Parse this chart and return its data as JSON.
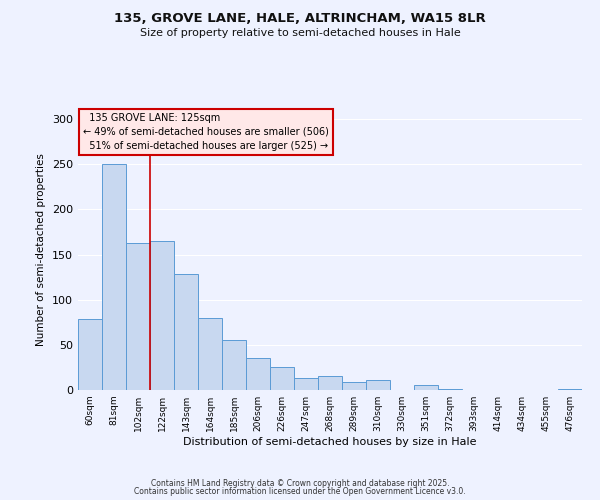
{
  "title1": "135, GROVE LANE, HALE, ALTRINCHAM, WA15 8LR",
  "title2": "Size of property relative to semi-detached houses in Hale",
  "xlabel": "Distribution of semi-detached houses by size in Hale",
  "ylabel": "Number of semi-detached properties",
  "categories": [
    "60sqm",
    "81sqm",
    "102sqm",
    "122sqm",
    "143sqm",
    "164sqm",
    "185sqm",
    "206sqm",
    "226sqm",
    "247sqm",
    "268sqm",
    "289sqm",
    "310sqm",
    "330sqm",
    "351sqm",
    "372sqm",
    "393sqm",
    "414sqm",
    "434sqm",
    "455sqm",
    "476sqm"
  ],
  "values": [
    79,
    250,
    163,
    165,
    128,
    80,
    55,
    35,
    25,
    13,
    16,
    9,
    11,
    0,
    5,
    1,
    0,
    0,
    0,
    0,
    1
  ],
  "bar_color": "#c8d8f0",
  "bar_edge_color": "#5b9bd5",
  "background_color": "#eef2ff",
  "grid_color": "#ffffff",
  "property_line_x": 3.5,
  "property_label": "135 GROVE LANE: 125sqm",
  "smaller_pct": 49,
  "smaller_count": 506,
  "larger_pct": 51,
  "larger_count": 525,
  "annotation_box_facecolor": "#ffe8e8",
  "annotation_box_edgecolor": "#cc0000",
  "ylim": [
    0,
    310
  ],
  "yticks": [
    0,
    50,
    100,
    150,
    200,
    250,
    300
  ],
  "footnote1": "Contains HM Land Registry data © Crown copyright and database right 2025.",
  "footnote2": "Contains public sector information licensed under the Open Government Licence v3.0."
}
